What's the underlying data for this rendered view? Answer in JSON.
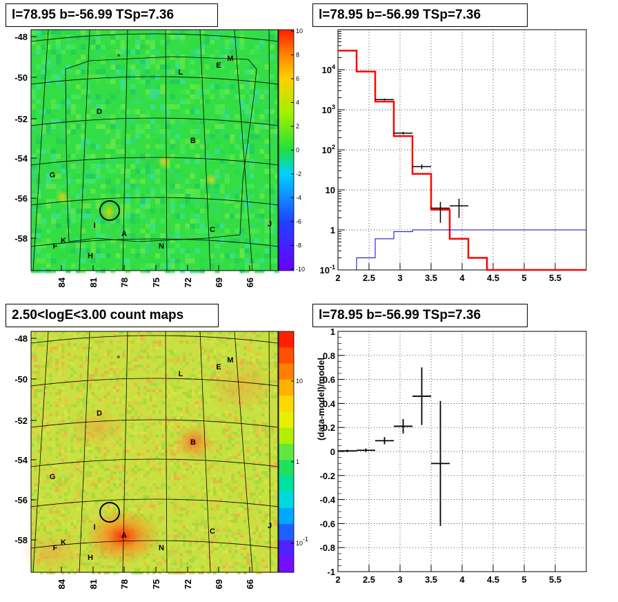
{
  "panels": {
    "top_left_title": "l=78.95 b=-56.99 TSp=7.36",
    "top_right_title": "l=78.95 b=-56.99 TSp=7.36",
    "bottom_left_title": "2.50<logE<3.00 count maps",
    "bottom_right_title": "l=78.95 b=-56.99 TSp=7.36"
  },
  "colors": {
    "map_background": "#33dd44",
    "count_background": "#c8e040",
    "data": "#000000",
    "model_red": "#ff0000",
    "model_blue": "#0000cc"
  },
  "chart_data": [
    {
      "type": "heatmap",
      "name": "residual map",
      "y_ticks": [
        "-48",
        "-50",
        "-52",
        "-54",
        "-56",
        "-58"
      ],
      "x_ticks": [
        "84",
        "81",
        "78",
        "75",
        "72",
        "69",
        "66"
      ],
      "colorbar_ticks": [
        "10",
        "8",
        "6",
        "4",
        "2",
        "0",
        "-2",
        "-4",
        "-6",
        "-8",
        "-10"
      ],
      "colorbar_range": [
        -10,
        10
      ],
      "source_labels": [
        "M",
        "E",
        "L",
        "D",
        "B",
        "G",
        "I",
        "A",
        "C",
        "J",
        "F",
        "K",
        "H",
        "N"
      ]
    },
    {
      "type": "line",
      "name": "spectrum",
      "xlim": [
        2,
        6
      ],
      "ylim": [
        0.1,
        100000
      ],
      "y_scale": "log",
      "x_ticks": [
        "2",
        "2.5",
        "3",
        "3.5",
        "4",
        "4.5",
        "5",
        "5.5"
      ],
      "y_ticks": [
        "10^{-1}",
        "1",
        "10",
        "10^{2}",
        "10^{3}",
        "10^{4}"
      ],
      "grid": true,
      "series": [
        {
          "style": "histogram",
          "color": "red",
          "edges": [
            2.0,
            2.3,
            2.6,
            2.9,
            3.2,
            3.5,
            3.8,
            4.1,
            4.4,
            6.0
          ],
          "values": [
            30000,
            9000,
            1600,
            220,
            25,
            3.2,
            0.6,
            0.2,
            0.1
          ]
        },
        {
          "style": "histogram",
          "color": "blue",
          "edges": [
            2.3,
            2.6,
            2.9,
            3.2,
            6.0
          ],
          "values": [
            0.2,
            0.6,
            0.9,
            1.0
          ]
        },
        {
          "style": "points",
          "color": "black",
          "x": [
            2.75,
            3.05,
            3.35,
            3.65,
            3.95
          ],
          "y": [
            1800,
            260,
            38,
            3.5,
            4
          ],
          "xerr": 0.15,
          "ylow": [
            1700,
            240,
            33,
            1.5,
            2
          ],
          "yhigh": [
            1900,
            280,
            43,
            5,
            6
          ]
        }
      ]
    },
    {
      "type": "heatmap",
      "name": "count map",
      "y_ticks": [
        "-48",
        "-50",
        "-52",
        "-54",
        "-56",
        "-58"
      ],
      "x_ticks": [
        "84",
        "81",
        "78",
        "75",
        "72",
        "69",
        "66"
      ],
      "colorbar_ticks": [
        "10",
        "1",
        "10^{-1}"
      ],
      "colorbar_scale": "log",
      "source_labels": [
        "M",
        "E",
        "L",
        "D",
        "B",
        "G",
        "I",
        "A",
        "C",
        "J",
        "F",
        "K",
        "H",
        "N"
      ]
    },
    {
      "type": "scatter",
      "name": "residuals",
      "ylabel": "(data-model)/model",
      "xlim": [
        2,
        6
      ],
      "ylim": [
        -1,
        1
      ],
      "x_ticks": [
        "2",
        "2.5",
        "3",
        "3.5",
        "4",
        "4.5",
        "5",
        "5.5"
      ],
      "y_ticks": [
        "1",
        "0.8",
        "0.6",
        "0.4",
        "0.2",
        "0",
        "-0.2",
        "-0.4",
        "-0.6",
        "-0.8",
        "-1"
      ],
      "grid": true,
      "x": [
        2.15,
        2.45,
        2.75,
        3.05,
        3.35,
        3.65
      ],
      "y": [
        0.005,
        0.01,
        0.09,
        0.21,
        0.46,
        -0.1
      ],
      "xerr": 0.15,
      "yerr": [
        0.01,
        0.015,
        0.03,
        0.06,
        0.24,
        0.52
      ]
    }
  ]
}
